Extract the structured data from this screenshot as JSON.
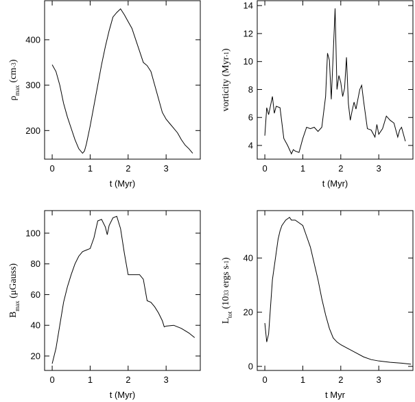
{
  "chart_data": [
    {
      "type": "line",
      "xlabel": "t (Myr)",
      "ylabel": [
        {
          "text": "ρ"
        },
        {
          "text": "max",
          "shift": "sub"
        },
        {
          "text": "  (cm"
        },
        {
          "text": "-3",
          "shift": "sup"
        },
        {
          "text": ")"
        }
      ],
      "x": [
        0,
        0.1,
        0.2,
        0.3,
        0.4,
        0.5,
        0.6,
        0.7,
        0.8,
        0.85,
        0.9,
        1.0,
        1.1,
        1.2,
        1.3,
        1.4,
        1.5,
        1.6,
        1.7,
        1.8,
        1.9,
        2.0,
        2.1,
        2.2,
        2.3,
        2.4,
        2.5,
        2.6,
        2.7,
        2.8,
        2.9,
        3.0,
        3.1,
        3.2,
        3.3,
        3.4,
        3.5,
        3.6,
        3.7
      ],
      "values": [
        345,
        330,
        300,
        260,
        230,
        205,
        180,
        160,
        150,
        155,
        170,
        210,
        255,
        300,
        345,
        385,
        420,
        450,
        460,
        468,
        455,
        440,
        425,
        400,
        375,
        350,
        343,
        330,
        300,
        270,
        240,
        225,
        215,
        205,
        195,
        180,
        168,
        160,
        150
      ],
      "color": "#000000",
      "xlim": [
        -0.2,
        3.9
      ],
      "ylim": [
        137,
        486
      ],
      "xticks": [
        0,
        1,
        2,
        3
      ],
      "yticks": [
        200,
        300,
        400
      ]
    },
    {
      "type": "line",
      "xlabel": "t (Myr)",
      "ylabel": [
        {
          "text": "vorticity  (Myr"
        },
        {
          "text": "-1",
          "shift": "sup"
        },
        {
          "text": ")"
        }
      ],
      "x": [
        0,
        0.05,
        0.1,
        0.2,
        0.25,
        0.3,
        0.4,
        0.5,
        0.6,
        0.7,
        0.75,
        0.8,
        0.9,
        1.0,
        1.1,
        1.2,
        1.3,
        1.4,
        1.5,
        1.6,
        1.65,
        1.7,
        1.75,
        1.8,
        1.85,
        1.9,
        1.95,
        2.0,
        2.05,
        2.1,
        2.15,
        2.2,
        2.25,
        2.3,
        2.35,
        2.4,
        2.5,
        2.55,
        2.6,
        2.7,
        2.8,
        2.9,
        2.95,
        3.0,
        3.1,
        3.2,
        3.3,
        3.4,
        3.5,
        3.55,
        3.6,
        3.7
      ],
      "values": [
        4.7,
        6.7,
        6.2,
        7.5,
        6.3,
        6.8,
        6.7,
        4.5,
        4,
        3.4,
        3.7,
        3.6,
        3.5,
        4.5,
        5.3,
        5.2,
        5.3,
        5,
        5.3,
        7.5,
        10.6,
        10.1,
        7.3,
        10.5,
        13.8,
        8,
        9,
        8.5,
        7.5,
        8.1,
        10.3,
        7,
        5.8,
        6.5,
        7.1,
        6.6,
        8,
        8.3,
        7.2,
        5.2,
        5.1,
        4.6,
        5.5,
        4.8,
        5.2,
        6.1,
        5.8,
        5.6,
        4.6,
        5.1,
        5.3,
        4.3
      ],
      "color": "#000000",
      "xlim": [
        -0.2,
        3.9
      ],
      "ylim": [
        3.02,
        14.35
      ],
      "xticks": [
        0,
        1,
        2,
        3
      ],
      "yticks": [
        4,
        6,
        8,
        10,
        12,
        14
      ]
    },
    {
      "type": "line",
      "xlabel": "t (Myr)",
      "ylabel": [
        {
          "text": "B"
        },
        {
          "text": "max",
          "shift": "sub"
        },
        {
          "text": "  (μGauss)"
        }
      ],
      "x": [
        0,
        0.1,
        0.2,
        0.3,
        0.4,
        0.5,
        0.6,
        0.7,
        0.8,
        0.9,
        1.0,
        1.1,
        1.2,
        1.3,
        1.4,
        1.45,
        1.5,
        1.6,
        1.7,
        1.8,
        1.9,
        2.0,
        2.1,
        2.2,
        2.3,
        2.4,
        2.5,
        2.6,
        2.7,
        2.8,
        2.9,
        2.95,
        3.0,
        3.2,
        3.4,
        3.6,
        3.75
      ],
      "values": [
        15,
        25,
        40,
        55,
        65,
        73,
        80,
        85,
        88,
        89,
        90,
        97,
        108,
        109,
        104,
        99,
        105,
        110,
        111,
        103,
        87,
        73,
        73,
        73,
        73,
        70,
        56,
        55,
        52,
        48,
        43,
        39,
        39.5,
        40,
        38,
        35,
        32
      ],
      "color": "#000000",
      "xlim": [
        -0.2,
        3.9
      ],
      "ylim": [
        10.6,
        114.7
      ],
      "xticks": [
        0,
        1,
        2,
        3
      ],
      "yticks": [
        20,
        40,
        60,
        80,
        100
      ]
    },
    {
      "type": "line",
      "xlabel": "t Myr",
      "ylabel": [
        {
          "text": "L"
        },
        {
          "text": "tot",
          "shift": "sub"
        },
        {
          "text": "  (10"
        },
        {
          "text": "33",
          "shift": "sup"
        },
        {
          "text": " ergs  s"
        },
        {
          "text": "-1",
          "shift": "sup"
        },
        {
          "text": ")"
        }
      ],
      "x": [
        0,
        0.05,
        0.1,
        0.15,
        0.2,
        0.3,
        0.35,
        0.4,
        0.45,
        0.5,
        0.55,
        0.6,
        0.65,
        0.7,
        0.8,
        0.9,
        1.0,
        1.1,
        1.2,
        1.3,
        1.4,
        1.5,
        1.6,
        1.7,
        1.8,
        1.9,
        2.0,
        2.2,
        2.4,
        2.6,
        2.8,
        3.0,
        3.3,
        3.6,
        3.85
      ],
      "values": [
        16,
        9,
        12,
        22,
        32,
        42,
        47,
        50,
        52,
        53,
        54,
        54.5,
        55,
        54,
        54,
        53,
        52,
        48,
        44,
        38,
        32,
        25,
        19,
        14,
        10.5,
        9,
        8,
        6.5,
        5,
        3.5,
        2.5,
        2,
        1.5,
        1.2,
        0.8
      ],
      "color": "#000000",
      "xlim": [
        -0.2,
        3.9
      ],
      "ylim": [
        -1.5,
        57.5
      ],
      "xticks": [
        0,
        1,
        2,
        3
      ],
      "yticks": [
        0,
        20,
        40
      ]
    }
  ]
}
